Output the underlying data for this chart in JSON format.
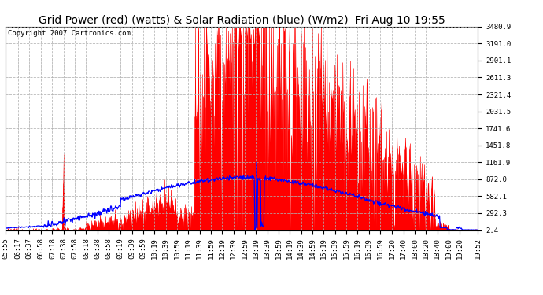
{
  "title": "Grid Power (red) (watts) & Solar Radiation (blue) (W/m2)  Fri Aug 10 19:55",
  "copyright": "Copyright 2007 Cartronics.com",
  "background_color": "#ffffff",
  "plot_bg_color": "#ffffff",
  "grid_color": "#b0b0b0",
  "ylim": [
    2.4,
    3480.9
  ],
  "yticks": [
    2.4,
    292.3,
    582.1,
    872.0,
    1161.9,
    1451.8,
    1741.6,
    2031.5,
    2321.4,
    2611.3,
    2901.1,
    3191.0,
    3480.9
  ],
  "red_fill_color": "#ff0000",
  "blue_line_color": "#0000ff",
  "title_fontsize": 10,
  "copyright_fontsize": 6.5,
  "tick_fontsize": 6.5,
  "x_tick_labels": [
    "05:55",
    "06:17",
    "06:37",
    "06:58",
    "07:18",
    "07:38",
    "07:58",
    "08:18",
    "08:38",
    "08:58",
    "09:19",
    "09:39",
    "09:59",
    "10:19",
    "10:39",
    "10:59",
    "11:19",
    "11:39",
    "11:59",
    "12:19",
    "12:39",
    "12:59",
    "13:19",
    "13:39",
    "13:59",
    "14:19",
    "14:39",
    "14:59",
    "15:19",
    "15:39",
    "15:59",
    "16:19",
    "16:39",
    "16:59",
    "17:20",
    "17:40",
    "18:00",
    "18:20",
    "18:40",
    "19:00",
    "19:20",
    "19:52"
  ]
}
